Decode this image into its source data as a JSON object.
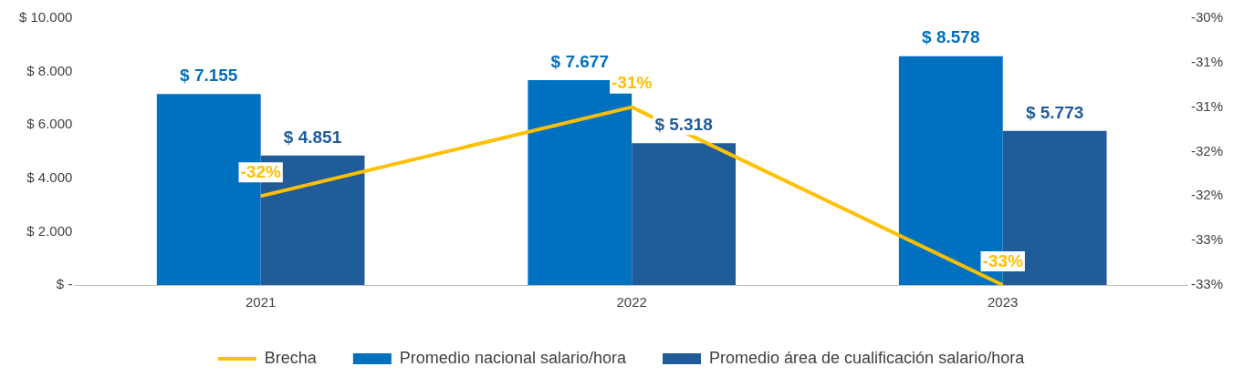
{
  "chart_data": {
    "type": "bar",
    "categories": [
      "2021",
      "2022",
      "2023"
    ],
    "series": [
      {
        "name": "Promedio nacional salario/hora",
        "color": "#0070c0",
        "values": [
          7155,
          7677,
          8578
        ],
        "value_labels": [
          "$ 7.155",
          "$ 7.677",
          "$ 8.578"
        ]
      },
      {
        "name": "Promedio área de cualificación salario/hora",
        "color": "#1f5c99",
        "values": [
          4851,
          5318,
          5773
        ],
        "value_labels": [
          "$ 4.851",
          "$ 5.318",
          "$ 5.773"
        ]
      },
      {
        "name": "Brecha",
        "type": "line",
        "axis": "y2",
        "color": "#ffc000",
        "values": [
          -32,
          -31,
          -33
        ],
        "value_labels": [
          "-32%",
          "-31%",
          "-33%"
        ]
      }
    ],
    "ylim": [
      0,
      10000
    ],
    "yticks": [
      {
        "value": 0,
        "label": "$ -"
      },
      {
        "value": 2000,
        "label": "$ 2.000"
      },
      {
        "value": 4000,
        "label": "$ 4.000"
      },
      {
        "value": 6000,
        "label": "$ 6.000"
      },
      {
        "value": 8000,
        "label": "$ 8.000"
      },
      {
        "value": 10000,
        "label": "$ 10.000"
      }
    ],
    "y2lim": [
      -33,
      -30
    ],
    "y2ticks": [
      {
        "value": -33,
        "label": "-33%"
      },
      {
        "value": -32.5,
        "label": "-33%"
      },
      {
        "value": -32,
        "label": "-32%"
      },
      {
        "value": -31.5,
        "label": "-32%"
      },
      {
        "value": -31,
        "label": "-31%"
      },
      {
        "value": -30.5,
        "label": "-31%"
      },
      {
        "value": -30,
        "label": "-30%"
      }
    ],
    "grid": false,
    "legend": "bottom",
    "marker": "none",
    "line_style": "solid"
  }
}
